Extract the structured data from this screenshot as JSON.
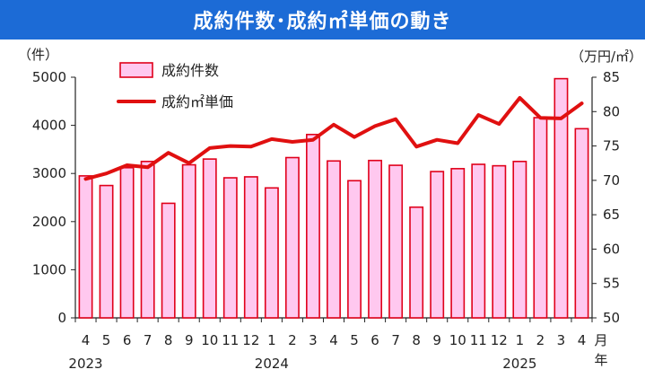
{
  "chart_data": {
    "type": "bar",
    "title": "成約件数･成約㎡単価の動き",
    "left_axis_unit": "（件）",
    "right_axis_unit": "（万円/㎡）",
    "month_suffix": "月",
    "year_suffix": "年",
    "years": [
      {
        "label": "2023",
        "index": 0
      },
      {
        "label": "2024",
        "index": 9
      },
      {
        "label": "2025",
        "index": 21
      }
    ],
    "categories": [
      "4",
      "5",
      "6",
      "7",
      "8",
      "9",
      "10",
      "11",
      "12",
      "1",
      "2",
      "3",
      "4",
      "5",
      "6",
      "7",
      "8",
      "9",
      "10",
      "11",
      "12",
      "1",
      "2",
      "3",
      "4"
    ],
    "ylim_left": [
      0,
      5000
    ],
    "yticks_left": [
      0,
      1000,
      2000,
      3000,
      4000,
      5000
    ],
    "ylim_right": [
      50,
      85
    ],
    "yticks_right": [
      50,
      55,
      60,
      65,
      70,
      75,
      80,
      85
    ],
    "colors": {
      "bar_fill": "#ffc8ef",
      "bar_stroke": "#e0001a",
      "line": "#e01010",
      "banner": "#1c6bd6"
    },
    "series": [
      {
        "name": "成約件数",
        "type": "bar",
        "axis": "left",
        "values": [
          2950,
          2750,
          3120,
          3250,
          2380,
          3180,
          3300,
          2910,
          2930,
          2700,
          3330,
          3810,
          3260,
          2850,
          3270,
          3170,
          2300,
          3040,
          3100,
          3190,
          3160,
          3250,
          4160,
          4970,
          3930
        ]
      },
      {
        "name": "成約㎡単価",
        "type": "line",
        "axis": "right",
        "values": [
          70.2,
          71.0,
          72.2,
          71.9,
          74.0,
          72.5,
          74.7,
          75.0,
          74.9,
          76.0,
          75.6,
          75.9,
          78.1,
          76.3,
          77.9,
          78.9,
          74.9,
          75.9,
          75.4,
          79.5,
          78.2,
          82.0,
          79.1,
          79.0,
          81.2
        ]
      }
    ]
  }
}
